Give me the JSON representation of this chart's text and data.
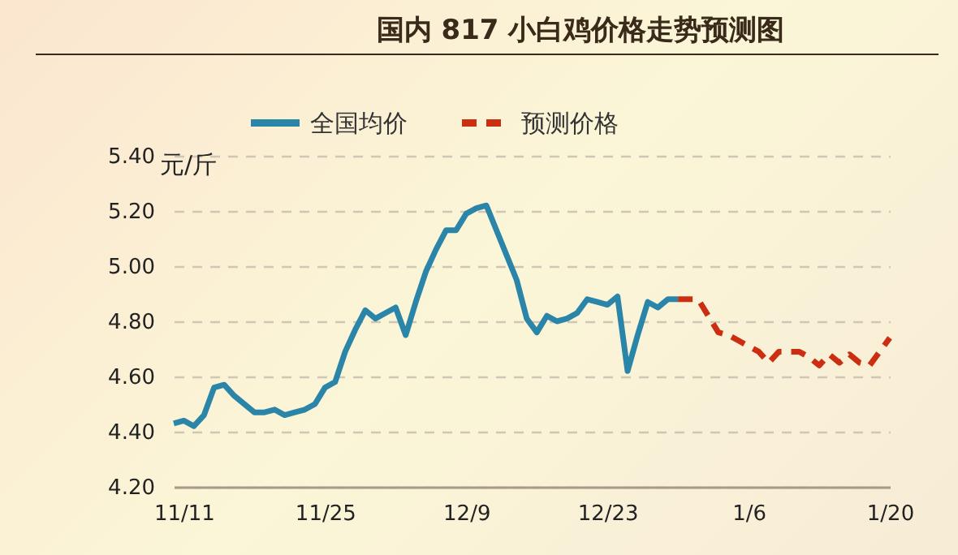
{
  "chart_data": {
    "type": "line",
    "title": "国内 817 小白鸡价格走势预测图",
    "ylabel": "元/斤",
    "categories": [
      null,
      "11/11",
      null,
      null,
      null,
      null,
      null,
      null,
      null,
      null,
      null,
      null,
      null,
      null,
      null,
      "11/25",
      null,
      null,
      null,
      null,
      null,
      null,
      null,
      null,
      null,
      null,
      null,
      null,
      null,
      "12/9",
      null,
      null,
      null,
      null,
      null,
      null,
      null,
      null,
      null,
      null,
      null,
      null,
      null,
      "12/23",
      null,
      null,
      null,
      null,
      null,
      null,
      null,
      null,
      null,
      null,
      null,
      null,
      null,
      "1/6",
      null,
      null,
      null,
      null,
      null,
      null,
      null,
      null,
      null,
      null,
      null,
      null,
      null,
      "1/20"
    ],
    "ylim": [
      4.2,
      5.4
    ],
    "yticks": [
      {
        "value": 4.2,
        "label": "4.20"
      },
      {
        "value": 4.4,
        "label": "4.40"
      },
      {
        "value": 4.6,
        "label": "4.60"
      },
      {
        "value": 4.8,
        "label": "4.80"
      },
      {
        "value": 5.0,
        "label": "5.00"
      },
      {
        "value": 5.2,
        "label": "5.20"
      },
      {
        "value": 5.4,
        "label": "5.40"
      }
    ],
    "grid": "y",
    "legend": "top",
    "series": [
      {
        "name": "全国均价",
        "color": "#2a85a8",
        "line_style": "solid",
        "values": [
          4.43,
          4.44,
          4.42,
          4.46,
          4.56,
          4.57,
          4.53,
          4.5,
          4.47,
          4.47,
          4.48,
          4.46,
          4.47,
          4.48,
          4.5,
          4.56,
          4.58,
          4.69,
          4.77,
          4.84,
          4.81,
          4.83,
          4.85,
          4.75,
          4.87,
          4.98,
          5.06,
          5.13,
          5.13,
          5.19,
          5.21,
          5.22,
          5.13,
          5.04,
          4.95,
          4.81,
          4.76,
          4.82,
          4.8,
          4.81,
          4.83,
          4.88,
          4.87,
          4.86,
          4.89,
          4.62,
          4.75,
          4.87,
          4.85,
          4.88,
          4.88,
          null,
          null,
          null,
          null,
          null,
          null,
          null,
          null,
          null,
          null,
          null,
          null,
          null,
          null,
          null,
          null,
          null,
          null,
          null,
          null,
          null
        ]
      },
      {
        "name": "预测价格",
        "color": "#cc2e12",
        "line_style": "dashed",
        "values": [
          null,
          null,
          null,
          null,
          null,
          null,
          null,
          null,
          null,
          null,
          null,
          null,
          null,
          null,
          null,
          null,
          null,
          null,
          null,
          null,
          null,
          null,
          null,
          null,
          null,
          null,
          null,
          null,
          null,
          null,
          null,
          null,
          null,
          null,
          null,
          null,
          null,
          null,
          null,
          null,
          null,
          null,
          null,
          null,
          null,
          null,
          null,
          null,
          null,
          null,
          4.88,
          4.88,
          4.88,
          4.82,
          4.76,
          4.75,
          4.73,
          4.71,
          4.69,
          4.65,
          4.69,
          4.69,
          4.69,
          4.67,
          4.64,
          4.68,
          4.65,
          4.68,
          4.65,
          4.64,
          4.69,
          4.74
        ]
      }
    ]
  }
}
